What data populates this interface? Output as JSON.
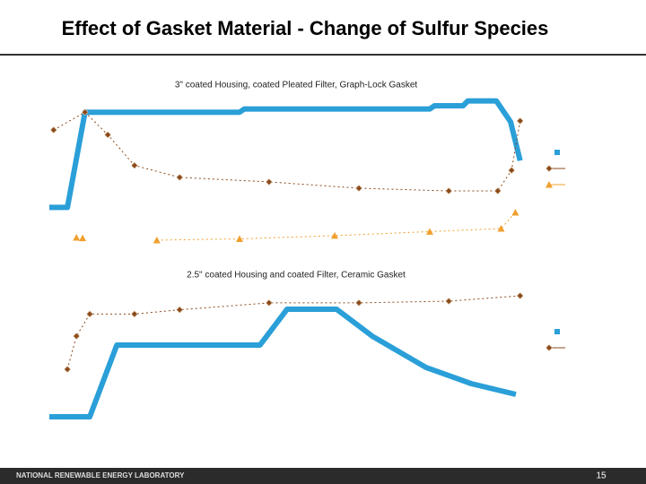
{
  "slide_title": "Effect of Gasket Material - Change of Sulfur Species",
  "footer": "NATIONAL RENEWABLE ENERGY LABORATORY",
  "page_number": "15",
  "chart_data": [
    {
      "type": "line",
      "title": "3\" coated Housing, coated Pleated Filter, Graph-Lock Gasket",
      "xlim": [
        0,
        100
      ],
      "ylim": [
        0,
        100
      ],
      "series": [
        {
          "color": "#2a9fd8",
          "marker": "none",
          "x": [
            0,
            3.8,
            7.5,
            20,
            40,
            41,
            60,
            80,
            81,
            87,
            88,
            94,
            97,
            99
          ],
          "values": [
            27,
            27,
            86,
            86,
            86,
            88,
            88,
            88,
            90,
            90,
            93,
            93,
            80,
            56
          ]
        },
        {
          "color": "#8b4a1c",
          "marker": "diamond",
          "x": [
            0.9,
            7.5,
            12.3,
            17.9,
            27.4,
            46.2,
            65.1,
            84,
            94.3,
            97.2,
            99
          ],
          "values": [
            75,
            86,
            72,
            53,
            45.6,
            42.8,
            38.9,
            37.2,
            37.2,
            50,
            80.6
          ]
        },
        {
          "color": "#f0a030",
          "marker": "triangle",
          "x": [
            5.7,
            7,
            null,
            22.6,
            40,
            60,
            80,
            95,
            98
          ],
          "values": [
            8.3,
            8,
            null,
            6.7,
            7.5,
            9.5,
            12,
            13.9,
            23.9
          ]
        }
      ]
    },
    {
      "type": "line",
      "title": "2.5\" coated Housing and coated Filter, Ceramic Gasket",
      "xlim": [
        0,
        100
      ],
      "ylim": [
        0,
        100
      ],
      "series": [
        {
          "color": "#2a9fd8",
          "marker": "none",
          "x": [
            0,
            8.5,
            14.2,
            44.3,
            50,
            60.4,
            67.9,
            79.2,
            88.7,
            98.1
          ],
          "values": [
            9.4,
            9.4,
            59.4,
            59.4,
            84.4,
            84.4,
            65.6,
            43.8,
            32.5,
            25
          ]
        },
        {
          "color": "#8b4a1c",
          "marker": "diamond",
          "x": [
            3.8,
            5.7,
            8.5,
            17.9,
            27.4,
            46.2,
            65.1,
            84,
            99
          ],
          "values": [
            42.5,
            65.6,
            81,
            81,
            84,
            88.8,
            88.8,
            90,
            93.75
          ]
        }
      ]
    }
  ]
}
